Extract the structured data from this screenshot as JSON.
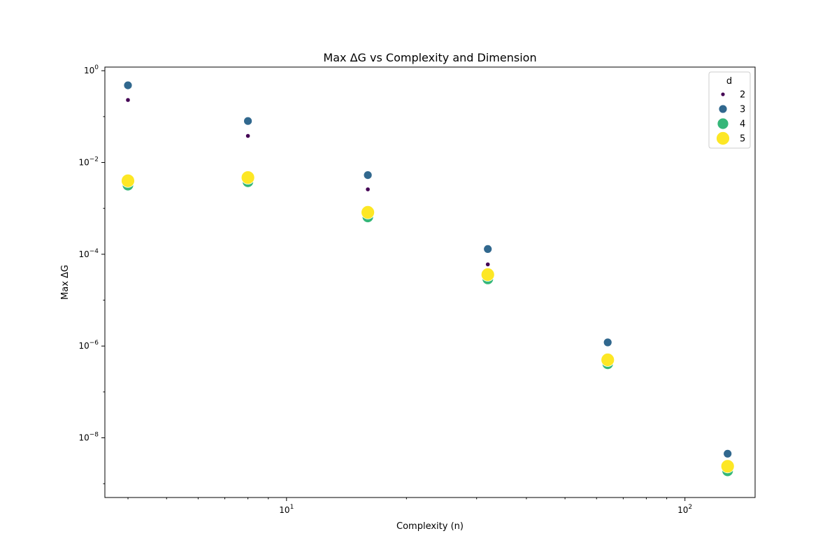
{
  "chart_data": {
    "type": "scatter",
    "title": "Max ΔG vs Complexity and Dimension",
    "xlabel": "Complexity (n)",
    "ylabel": "Max ΔG",
    "x_scale": "log",
    "y_scale": "log",
    "xlim": [
      3.5,
      150
    ],
    "ylim": [
      5e-10,
      1.2
    ],
    "grid": false,
    "x_ticks": [
      {
        "value": 10,
        "base": "10",
        "exp": "1"
      },
      {
        "value": 100,
        "base": "10",
        "exp": "2"
      }
    ],
    "y_ticks": [
      {
        "value": 1,
        "base": "10",
        "exp": "0"
      },
      {
        "value": 0.01,
        "base": "10",
        "exp": "−2"
      },
      {
        "value": 0.0001,
        "base": "10",
        "exp": "−4"
      },
      {
        "value": 1e-06,
        "base": "10",
        "exp": "−6"
      },
      {
        "value": 1e-08,
        "base": "10",
        "exp": "−8"
      }
    ],
    "legend": {
      "title": "d",
      "placement": "top-right",
      "entries": [
        "2",
        "3",
        "4",
        "5"
      ]
    },
    "series": [
      {
        "name": "2",
        "color": "#440154",
        "x": [
          4,
          8,
          16,
          32
        ],
        "y": [
          0.23,
          0.038,
          0.0026,
          6e-05
        ]
      },
      {
        "name": "3",
        "color": "#31688e",
        "x": [
          4,
          8,
          16,
          32,
          64,
          128
        ],
        "y": [
          0.48,
          0.08,
          0.0053,
          0.00013,
          1.2e-06,
          4.5e-09
        ]
      },
      {
        "name": "4",
        "color": "#35b779",
        "x": [
          4,
          8,
          16,
          32,
          64,
          128
        ],
        "y": [
          0.0032,
          0.0038,
          0.00065,
          2.9e-05,
          4.1e-07,
          1.9e-09
        ]
      },
      {
        "name": "5",
        "color": "#fde725",
        "x": [
          4,
          8,
          16,
          32,
          64,
          128
        ],
        "y": [
          0.004,
          0.0047,
          0.00082,
          3.6e-05,
          5e-07,
          2.4e-09
        ]
      }
    ]
  }
}
